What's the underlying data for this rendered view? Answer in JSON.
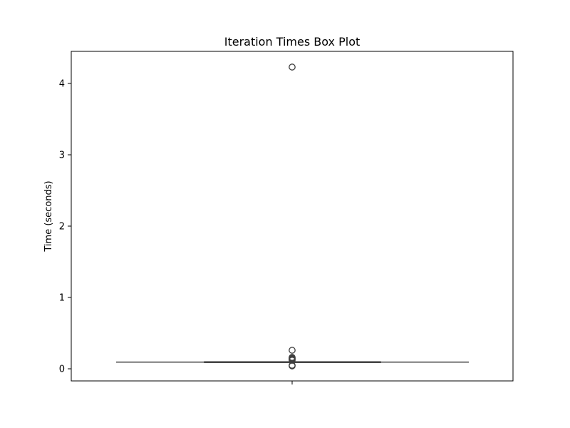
{
  "chart_data": {
    "type": "box",
    "title": "Iteration Times Box Plot",
    "xlabel": "",
    "ylabel": "Time (seconds)",
    "ylim": [
      -0.17,
      4.45
    ],
    "yticks": [
      0,
      1,
      2,
      3,
      4
    ],
    "grid": false,
    "box": {
      "q1": 0.094,
      "median": 0.096,
      "q3": 0.098,
      "whisker_low": 0.094,
      "whisker_high": 0.1
    },
    "outliers": [
      4.23,
      0.26,
      0.16,
      0.15,
      0.14,
      0.13,
      0.12,
      0.05,
      0.04
    ],
    "colors": {
      "box_edge": "#3f3f3f",
      "axis": "#000000",
      "marker_edge": "#3f3f3f"
    }
  }
}
